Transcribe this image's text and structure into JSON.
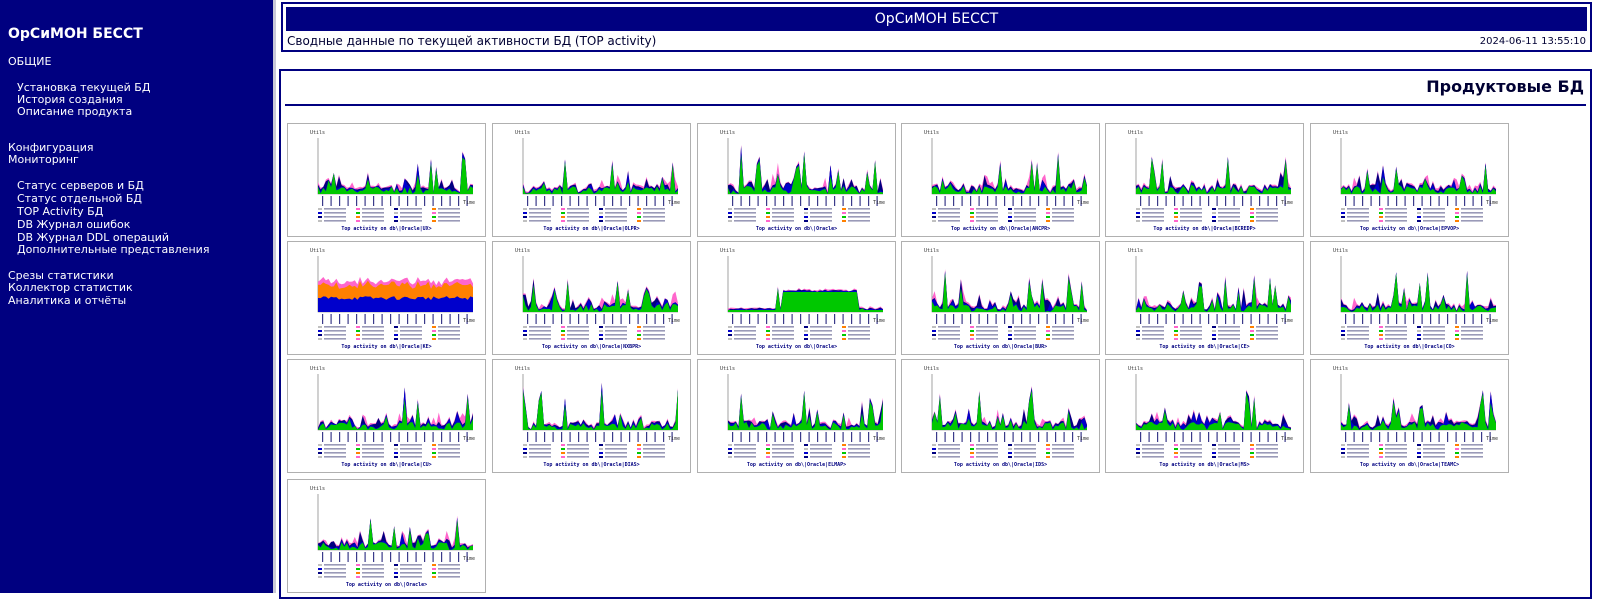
{
  "sidebar": {
    "brand": "ОрСиМОН БЕССТ",
    "groups": {
      "general": "ОБЩИЕ",
      "install": "Установка текущей БД",
      "history": "История создания",
      "description": "Описание продукта",
      "config": "Конфигурация",
      "monitoring": "Мониторинг",
      "servers": "Статус серверов и БД",
      "single": "Статус отдельной БД",
      "top": "TOP Activity БД",
      "errors": "DB Журнал ошибок",
      "ddl": "DB Журнал DDL операций",
      "extra": "Дополнительные представления",
      "snapshots": "Срезы статистики",
      "collector": "Коллектор статистик",
      "analytics": "Аналитика и отчёты"
    }
  },
  "header": {
    "title": "ОрСиМОН БЕССТ",
    "subtitle": "Сводные данные по текущей активности БД (TOP activity)",
    "timestamp": "2024-06-11 13:55:10"
  },
  "main": {
    "section_title": "Продуктовые БД",
    "axis_label": "Utils",
    "time_label": "Time",
    "captions": [
      "Top activity on db\\|Oracle|UX>",
      "Top activity on db\\|Oracle|OLPR>",
      "Top activity on db\\|Oracle>",
      "Top activity on db\\|Oracle|ANCPR>",
      "Top activity on db\\|Oracle|BCREDP>",
      "Top activity on db\\|Oracle|EPVOP>",
      "Top activity on db\\|Oracle|KE>",
      "Top activity on db\\|Oracle|NXBPR>",
      "Top activity on db\\|Oracle>",
      "Top activity on db\\|Oracle|BUR>",
      "Top activity on db\\|Oracle|CE>",
      "Top activity on db\\|Oracle|CO>",
      "Top activity on db\\|Oracle|CU>",
      "Top activity on db\\|Oracle|DIAS>",
      "Top activity on db\\|Oracle|ELMAP>",
      "Top activity on db\\|Oracle|IDS>",
      "Top activity on db\\|Oracle|MS>",
      "Top activity on db\\|Oracle|TEAMC>",
      "Top activity on db\\|Oracle>"
    ]
  },
  "colors": {
    "navy": "#000080",
    "cpu": "#00c800",
    "user_io": "#0000cc",
    "system_io": "#000080",
    "commit": "#ff8000",
    "other": "#ff66cc",
    "cluster": "#c0c0c0"
  }
}
